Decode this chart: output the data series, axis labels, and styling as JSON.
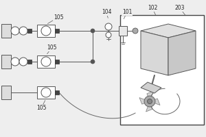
{
  "bg_color": "#eeeeee",
  "line_color": "#555555",
  "box_fc": "#f5f5f5",
  "box_ec": "#555555",
  "dark_fc": "#444444",
  "tank_fc": "#dddddd",
  "instrument_bg": "#f0f0f0",
  "fs": 5.5
}
